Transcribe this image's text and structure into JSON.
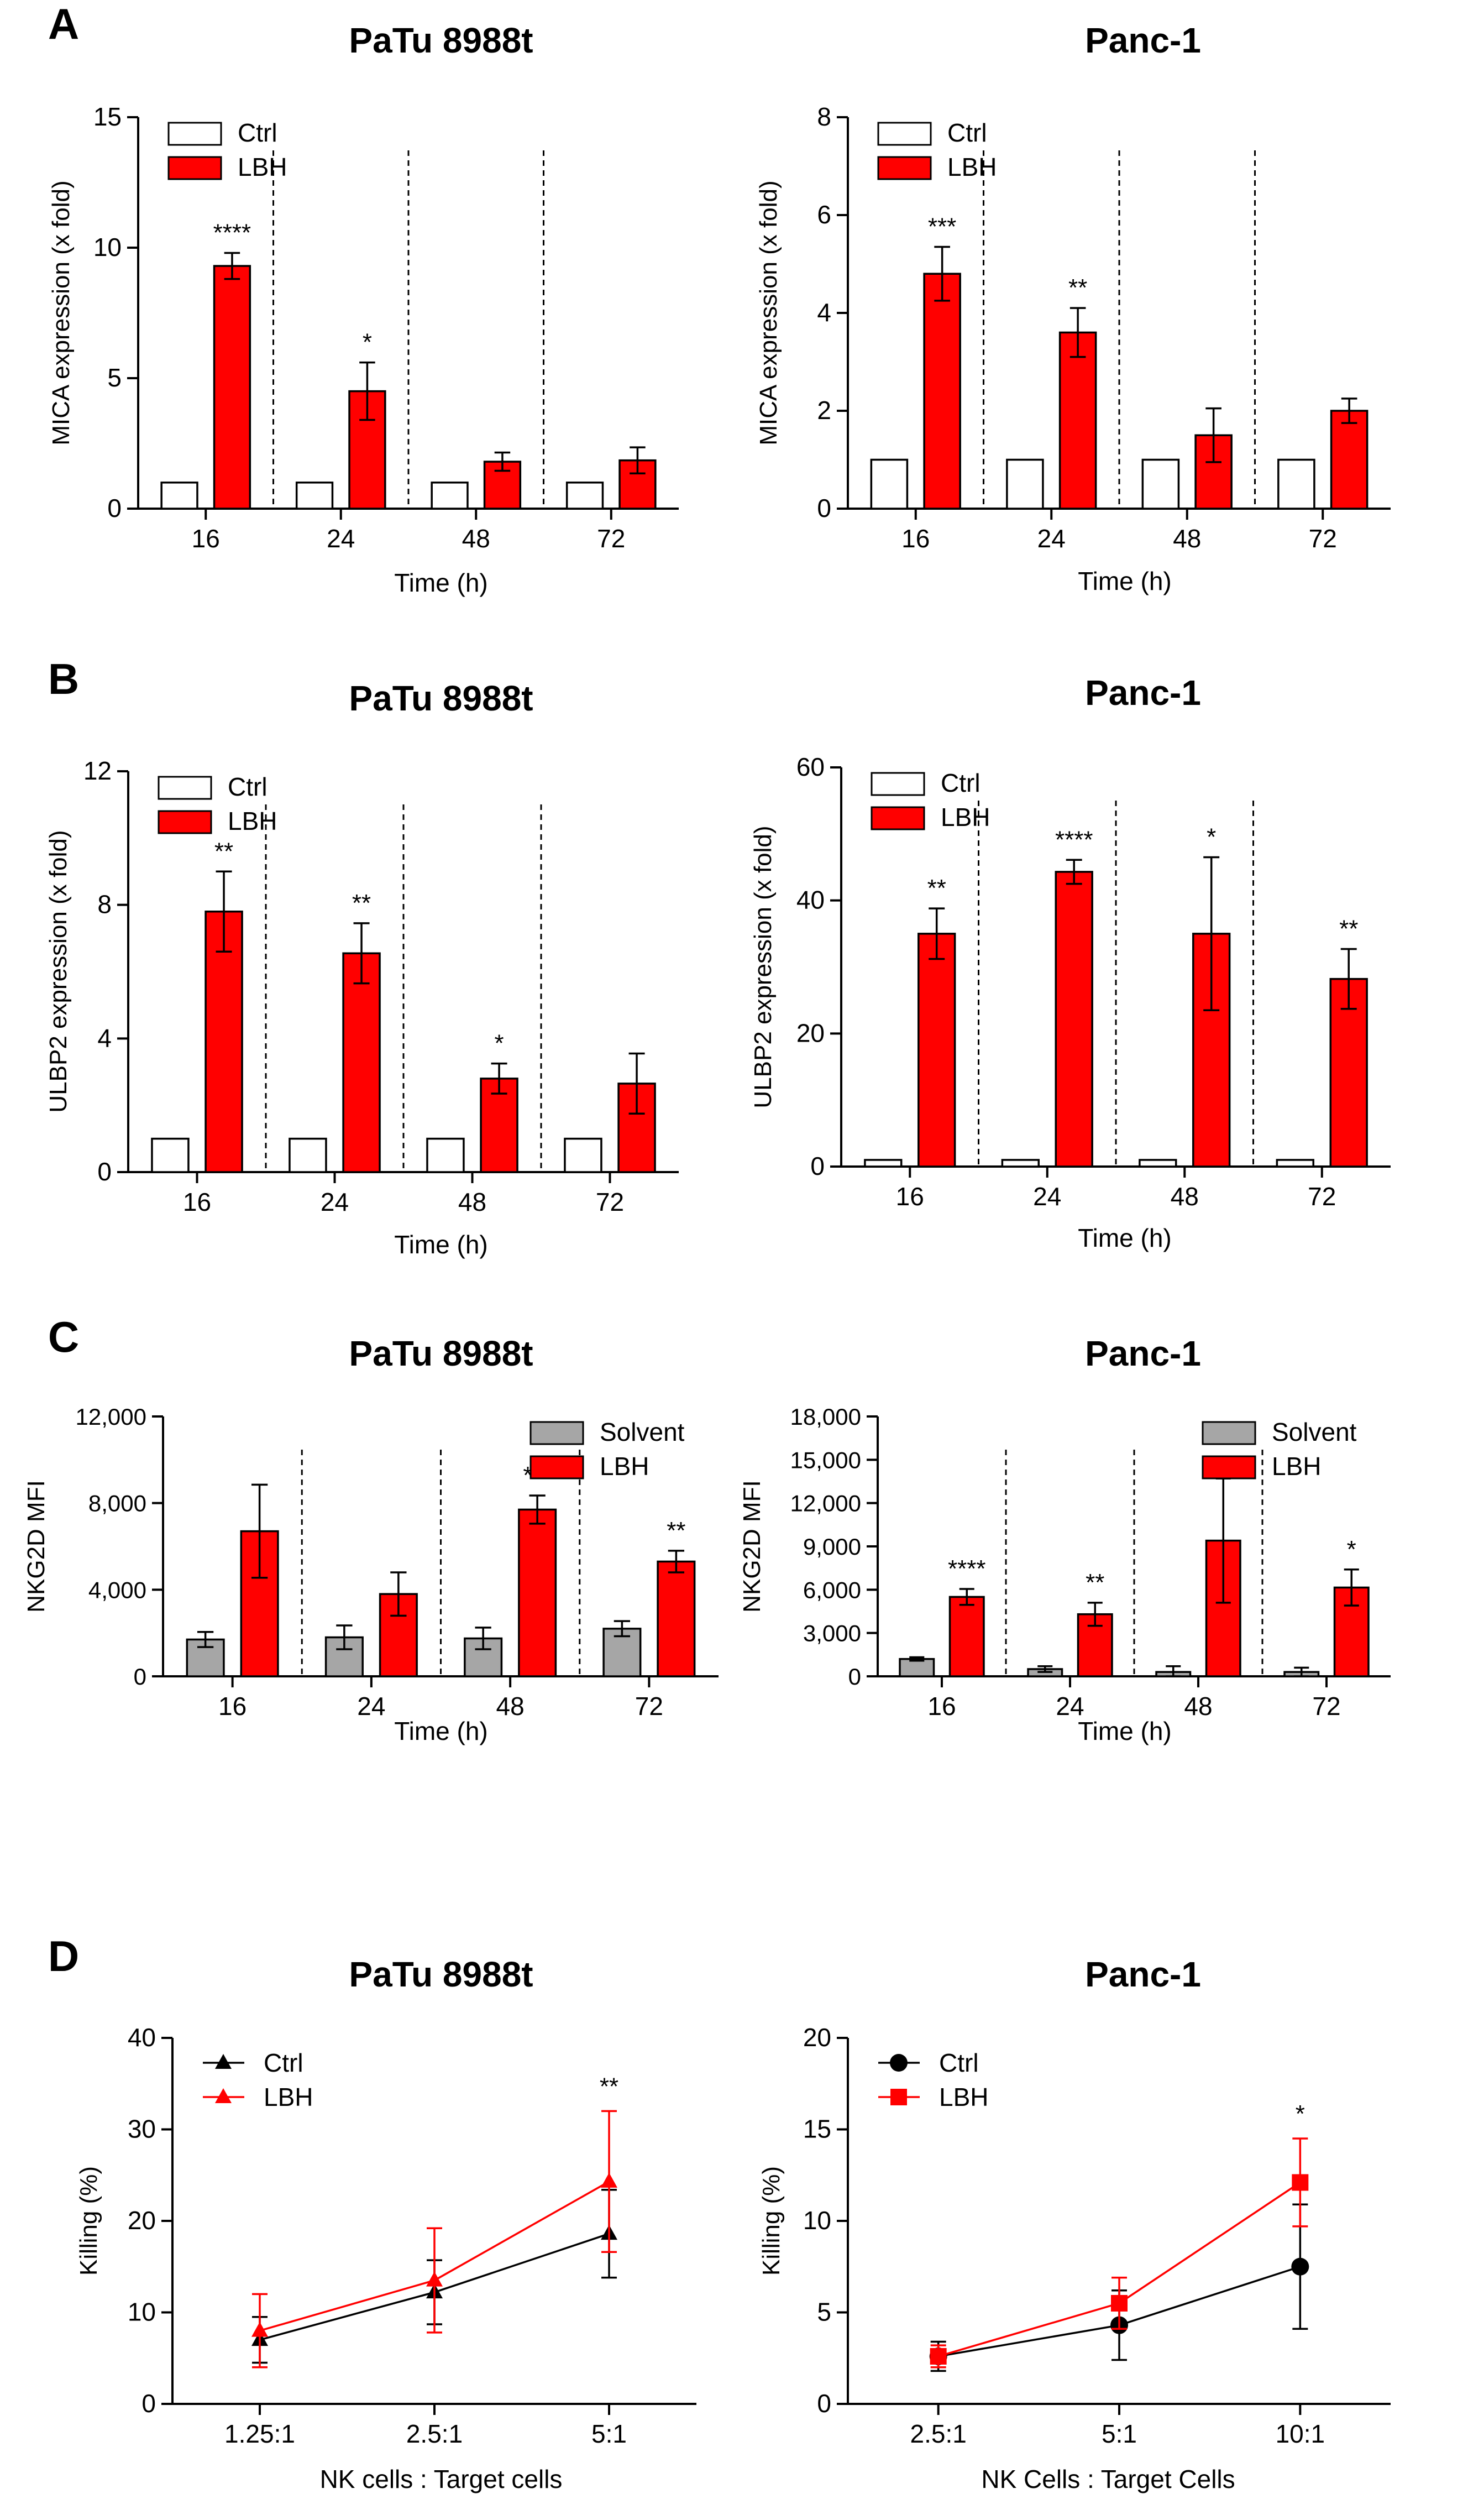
{
  "figure": {
    "panel_labels": [
      "A",
      "B",
      "C",
      "D"
    ],
    "colors": {
      "ctrl_fill": "#ffffff",
      "lbh": "#ff0000",
      "solvent": "#a6a6a6",
      "axis": "#000000",
      "ctrl_line": "#000000",
      "lbh_line": "#ff0000"
    }
  },
  "chart_data": [
    {
      "id": "A-left",
      "panel": "A",
      "type": "bar",
      "title": "PaTu 8988t",
      "xlabel": "Time (h)",
      "ylabel": "MICA expression (x fold)",
      "categories": [
        "16",
        "24",
        "48",
        "72"
      ],
      "ylim": [
        0,
        15
      ],
      "yticks": [
        "0",
        "5",
        "10",
        "15"
      ],
      "ytick_values": [
        0,
        5,
        10,
        15
      ],
      "series": [
        {
          "name": "Ctrl",
          "values": [
            1.0,
            1.0,
            1.0,
            1.0
          ],
          "errors": [
            0,
            0,
            0,
            0
          ]
        },
        {
          "name": "LBH",
          "values": [
            9.3,
            4.5,
            1.8,
            1.85
          ],
          "errors": [
            0.5,
            1.1,
            0.35,
            0.5
          ]
        }
      ],
      "significance": [
        "****",
        "*",
        "",
        ""
      ],
      "legend": "top-left"
    },
    {
      "id": "A-right",
      "panel": "A",
      "type": "bar",
      "title": "Panc-1",
      "xlabel": "Time (h)",
      "ylabel": "MICA expression (x fold)",
      "categories": [
        "16",
        "24",
        "48",
        "72"
      ],
      "ylim": [
        0,
        8
      ],
      "yticks": [
        "0",
        "2",
        "4",
        "6",
        "8"
      ],
      "ytick_values": [
        0,
        2,
        4,
        6,
        8
      ],
      "series": [
        {
          "name": "Ctrl",
          "values": [
            1.0,
            1.0,
            1.0,
            1.0
          ],
          "errors": [
            0,
            0,
            0,
            0
          ]
        },
        {
          "name": "LBH",
          "values": [
            4.8,
            3.6,
            1.5,
            2.0
          ],
          "errors": [
            0.55,
            0.5,
            0.55,
            0.25
          ]
        }
      ],
      "significance": [
        "***",
        "**",
        "",
        ""
      ],
      "legend": "top-left"
    },
    {
      "id": "B-left",
      "panel": "B",
      "type": "bar",
      "title": "PaTu 8988t",
      "xlabel": "Time (h)",
      "ylabel": "ULBP2 expression (x fold)",
      "categories": [
        "16",
        "24",
        "48",
        "72"
      ],
      "ylim": [
        0,
        12
      ],
      "yticks": [
        "0",
        "4",
        "8",
        "12"
      ],
      "ytick_values": [
        0,
        4,
        8,
        12
      ],
      "series": [
        {
          "name": "Ctrl",
          "values": [
            1.0,
            1.0,
            1.0,
            1.0
          ],
          "errors": [
            0,
            0,
            0,
            0
          ]
        },
        {
          "name": "LBH",
          "values": [
            7.8,
            6.55,
            2.8,
            2.65
          ],
          "errors": [
            1.2,
            0.9,
            0.45,
            0.9
          ]
        }
      ],
      "significance": [
        "**",
        "**",
        "*",
        ""
      ],
      "legend": "top-left"
    },
    {
      "id": "B-right",
      "panel": "B",
      "type": "bar",
      "title": "Panc-1",
      "xlabel": "Time (h)",
      "ylabel": "ULBP2 expression (x fold)",
      "categories": [
        "16",
        "24",
        "48",
        "72"
      ],
      "ylim": [
        0,
        60
      ],
      "yticks": [
        "0",
        "20",
        "40",
        "60"
      ],
      "ytick_values": [
        0,
        20,
        40,
        60
      ],
      "series": [
        {
          "name": "Ctrl",
          "values": [
            1.0,
            1.0,
            1.0,
            1.0
          ],
          "errors": [
            0,
            0,
            0,
            0
          ]
        },
        {
          "name": "LBH",
          "values": [
            35.0,
            44.3,
            35.0,
            28.2
          ],
          "errors": [
            3.8,
            1.8,
            11.5,
            4.5
          ]
        }
      ],
      "significance": [
        "**",
        "****",
        "*",
        "**"
      ],
      "legend": "top-left"
    },
    {
      "id": "C-left",
      "panel": "C",
      "type": "bar",
      "title": "PaTu 8988t",
      "xlabel": "Time (h)",
      "ylabel": "NKG2D MFI",
      "categories": [
        "16",
        "24",
        "48",
        "72"
      ],
      "ylim": [
        0,
        12000
      ],
      "yticks": [
        "0",
        "4,000",
        "8,000",
        "12,000"
      ],
      "ytick_values": [
        0,
        4000,
        8000,
        12000
      ],
      "series": [
        {
          "name": "Solvent",
          "values": [
            1700,
            1800,
            1750,
            2200
          ],
          "errors": [
            350,
            550,
            500,
            350
          ]
        },
        {
          "name": "LBH",
          "values": [
            6700,
            3800,
            7700,
            5300
          ],
          "errors": [
            2150,
            1000,
            650,
            500
          ]
        }
      ],
      "significance": [
        "",
        "",
        "***",
        "**"
      ],
      "legend": "top-right"
    },
    {
      "id": "C-right",
      "panel": "C",
      "type": "bar",
      "title": "Panc-1",
      "xlabel": "Time (h)",
      "ylabel": "NKG2D MFI",
      "categories": [
        "16",
        "24",
        "48",
        "72"
      ],
      "ylim": [
        0,
        18000
      ],
      "yticks": [
        "0",
        "3,000",
        "6,000",
        "9,000",
        "12,000",
        "15,000",
        "18,000"
      ],
      "ytick_values": [
        0,
        3000,
        6000,
        9000,
        12000,
        15000,
        18000
      ],
      "series": [
        {
          "name": "Solvent",
          "values": [
            1200,
            500,
            300,
            300
          ],
          "errors": [
            120,
            200,
            400,
            300
          ]
        },
        {
          "name": "LBH",
          "values": [
            5500,
            4300,
            9400,
            6150
          ],
          "errors": [
            550,
            800,
            4300,
            1250
          ]
        }
      ],
      "significance": [
        "****",
        "**",
        "",
        "*"
      ],
      "legend": "top-right"
    },
    {
      "id": "D-left",
      "panel": "D",
      "type": "line",
      "title": "PaTu 8988t",
      "xlabel": "NK cells : Target cells",
      "ylabel": "Killing (%)",
      "categories": [
        "1.25:1",
        "2.5:1",
        "5:1"
      ],
      "ylim": [
        0,
        40
      ],
      "yticks": [
        "0",
        "10",
        "20",
        "30",
        "40"
      ],
      "ytick_values": [
        0,
        10,
        20,
        30,
        40
      ],
      "series": [
        {
          "name": "Ctrl",
          "marker": "triangle",
          "values": [
            7.0,
            12.2,
            18.6
          ],
          "errors": [
            2.5,
            3.5,
            4.8
          ]
        },
        {
          "name": "LBH",
          "marker": "triangle",
          "values": [
            8.0,
            13.5,
            24.3
          ],
          "errors": [
            4.0,
            5.7,
            7.7
          ]
        }
      ],
      "significance": [
        "",
        "",
        "**"
      ],
      "legend": "top-left"
    },
    {
      "id": "D-right",
      "panel": "D",
      "type": "line",
      "title": "Panc-1",
      "xlabel": "NK Cells : Target Cells",
      "ylabel": "Killing (%)",
      "categories": [
        "2.5:1",
        "5:1",
        "10:1"
      ],
      "ylim": [
        0,
        20
      ],
      "yticks": [
        "0",
        "5",
        "10",
        "15",
        "20"
      ],
      "ytick_values": [
        0,
        5,
        10,
        15,
        20
      ],
      "series": [
        {
          "name": "Ctrl",
          "marker": "circle",
          "values": [
            2.6,
            4.3,
            7.5
          ],
          "errors": [
            0.8,
            1.9,
            3.4
          ]
        },
        {
          "name": "LBH",
          "marker": "square",
          "values": [
            2.6,
            5.5,
            12.1
          ],
          "errors": [
            0.6,
            1.4,
            2.4
          ]
        }
      ],
      "significance": [
        "",
        "",
        "*"
      ],
      "legend": "top-left"
    }
  ]
}
